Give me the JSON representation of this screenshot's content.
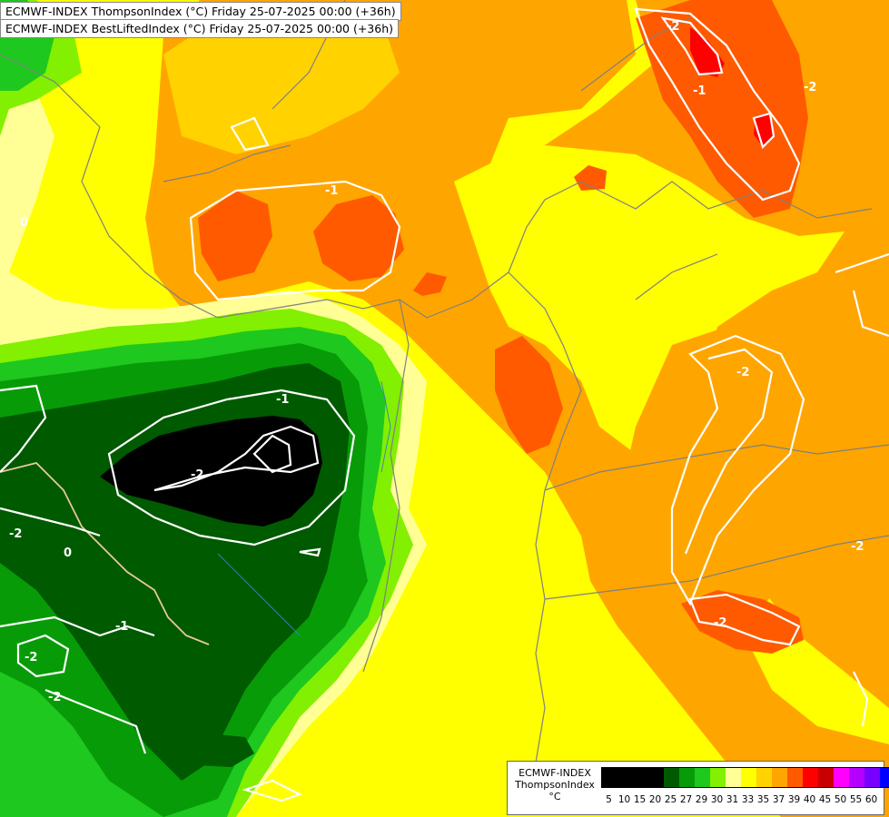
{
  "titles": [
    "ECMWF-INDEX ThompsonIndex (°C) Friday 25-07-2025 00:00 (+36h)",
    "ECMWF-INDEX BestLiftedIndex (°C) Friday 25-07-2025 00:00 (+36h)"
  ],
  "legend": {
    "model": "ECMWF-INDEX",
    "parameter": "ThompsonIndex",
    "unit": "°C",
    "ticks": [
      "5",
      "10",
      "15",
      "20",
      "25",
      "27",
      "29",
      "30",
      "31",
      "33",
      "35",
      "37",
      "39",
      "40",
      "45",
      "50",
      "55",
      "60"
    ],
    "colors": [
      "#000000",
      "#000000",
      "#000000",
      "#000000",
      "#005a00",
      "#089b08",
      "#1ec81e",
      "#82f000",
      "#ffff96",
      "#ffff00",
      "#ffd200",
      "#ffa500",
      "#ff5a00",
      "#ff0000",
      "#c80000",
      "#ff00ff",
      "#b400ff",
      "#7800ff",
      "#0000ff"
    ]
  },
  "contour_labels": [
    "-2",
    "-2",
    "-1",
    "-1",
    "-2",
    "-2",
    "0",
    "-2",
    "-1",
    "-2",
    "-2",
    "-1",
    "0",
    "-2",
    "-2"
  ],
  "colors": {
    "background_yellow": "#ffff00",
    "pale_yellow": "#ffff96",
    "light_orange": "#ffd200",
    "orange": "#ffa500",
    "dark_orange": "#ff5a00",
    "red": "#ff0000",
    "lime": "#82f000",
    "green": "#1ec81e",
    "mid_green": "#089b08",
    "dark_green": "#005a00",
    "black": "#000000",
    "contour": "#ffffff",
    "border_line": "#808080"
  }
}
